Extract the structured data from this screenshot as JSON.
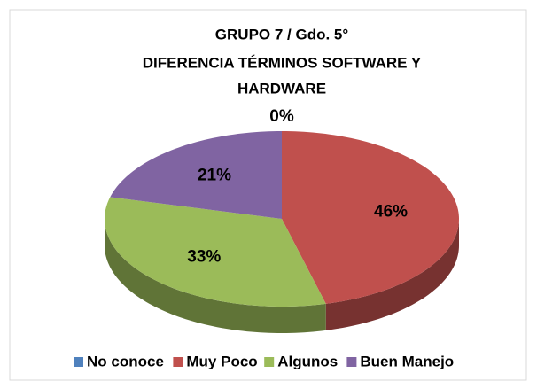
{
  "chart_data": {
    "type": "pie3d",
    "title": [
      "GRUPO 7 / Gdo. 5°",
      "DIFERENCIA TÉRMINOS SOFTWARE Y",
      "HARDWARE"
    ],
    "categories": [
      "No conoce",
      "Muy Poco",
      "Algunos",
      "Buen Manejo"
    ],
    "values": [
      0,
      46,
      33,
      21
    ],
    "value_labels": [
      "0%",
      "46%",
      "33%",
      "21%"
    ],
    "colors": [
      "#4f81bd",
      "#c0504d",
      "#9bbb59",
      "#8064a2"
    ],
    "legend": "bottom"
  }
}
